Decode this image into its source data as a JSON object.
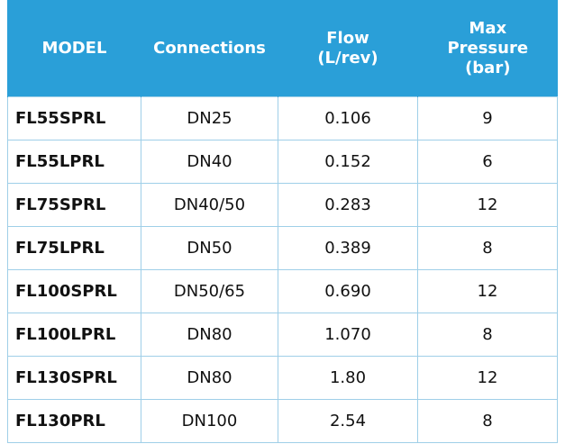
{
  "table": {
    "header": [
      [
        "MODEL"
      ],
      [
        "Connections"
      ],
      [
        "Flow",
        "(L/rev)"
      ],
      [
        "Max",
        "Pressure",
        "(bar)"
      ]
    ],
    "rows": [
      [
        "FL55SPRL",
        "DN25",
        "0.106",
        "9"
      ],
      [
        "FL55LPRL",
        "DN40",
        "0.152",
        "6"
      ],
      [
        "FL75SPRL",
        "DN40/50",
        "0.283",
        "12"
      ],
      [
        "FL75LPRL",
        "DN50",
        "0.389",
        "8"
      ],
      [
        "FL100SPRL",
        "DN50/65",
        "0.690",
        "12"
      ],
      [
        "FL100LPRL",
        "DN80",
        "1.070",
        "8"
      ],
      [
        "FL130SPRL",
        "DN80",
        "1.80",
        "12"
      ],
      [
        "FL130PRL",
        "DN100",
        "2.54",
        "8"
      ]
    ]
  }
}
